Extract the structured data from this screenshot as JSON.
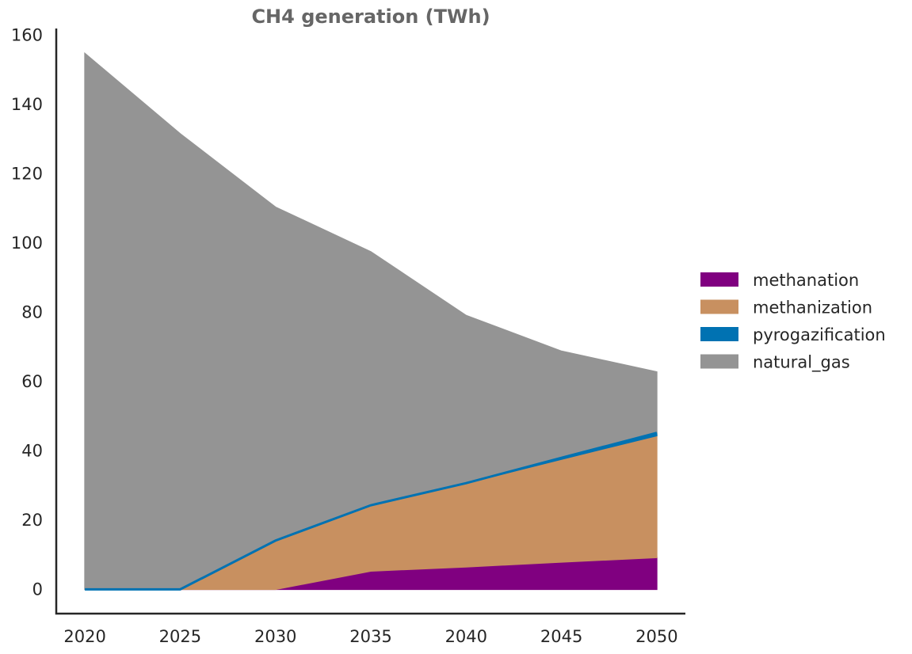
{
  "chart_data": {
    "type": "area",
    "title": "CH4 generation (TWh)",
    "xlabel": "",
    "ylabel": "",
    "x": [
      2020,
      2025,
      2030,
      2035,
      2040,
      2045,
      2050
    ],
    "ylim": [
      -7,
      162
    ],
    "xlim": [
      2018.5,
      2051.5
    ],
    "yticks": [
      0,
      20,
      40,
      60,
      80,
      100,
      120,
      140,
      160
    ],
    "xticks": [
      2020,
      2025,
      2030,
      2035,
      2040,
      2045,
      2050
    ],
    "stacked": true,
    "series": [
      {
        "name": "methanation",
        "color": "#800080",
        "values": [
          0,
          0,
          0,
          5.3,
          6.5,
          7.9,
          9.2
        ]
      },
      {
        "name": "methanization",
        "color": "#C89060",
        "values": [
          0,
          0,
          14.1,
          19.0,
          24.2,
          29.7,
          35.2
        ]
      },
      {
        "name": "pyrogazification",
        "color": "#0072B2",
        "values": [
          0,
          0,
          0,
          0,
          0,
          0.4,
          0.8
        ]
      },
      {
        "name": "natural_gas",
        "color": "#949494",
        "values": [
          154.8,
          131.6,
          96.3,
          73.2,
          48.4,
          30.8,
          17.6
        ]
      }
    ],
    "line_series": "pyrogazification",
    "legend_position": "right",
    "grid": false
  }
}
